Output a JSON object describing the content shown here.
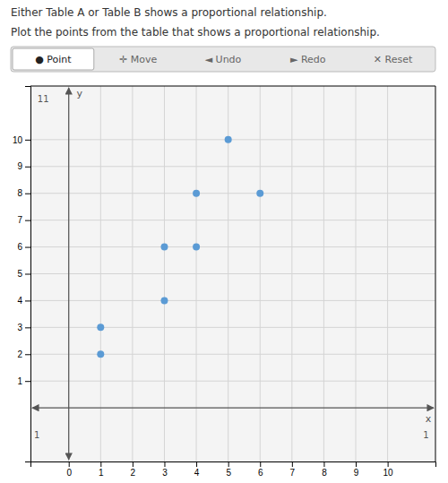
{
  "chart_data": {
    "type": "scatter",
    "title": "Either Table A or Table B shows a proportional relationship.",
    "subtitle": "Plot the points from the table that shows a proportional relationship.",
    "x_label": "x",
    "y_label": "y",
    "x": [
      1,
      1,
      3,
      3,
      4,
      4,
      5,
      6
    ],
    "values": [
      3,
      2,
      6,
      4,
      6,
      8,
      10,
      8
    ],
    "color": "#5b9bd5",
    "xlim": [
      -1.2,
      11.5
    ],
    "ylim": [
      -2.0,
      12.0
    ],
    "xticks": [
      0,
      1,
      2,
      3,
      4,
      5,
      6,
      7,
      8,
      9,
      10
    ],
    "yticks": [
      1,
      2,
      3,
      4,
      5,
      6,
      7,
      8,
      9,
      10
    ],
    "grid": true,
    "annotations": [
      {
        "text": "● Point"
      },
      {
        "text": "✛ Move"
      },
      {
        "text": "◄ Undo"
      },
      {
        "text": "► Redo"
      },
      {
        "text": "✕ Reset"
      },
      {
        "text": "1",
        "x": 11.2,
        "y": -1.0
      },
      {
        "text": "1",
        "x": -1.0,
        "y": -1.0
      },
      {
        "text": "11",
        "x": -0.8,
        "y": 11.5
      }
    ]
  }
}
